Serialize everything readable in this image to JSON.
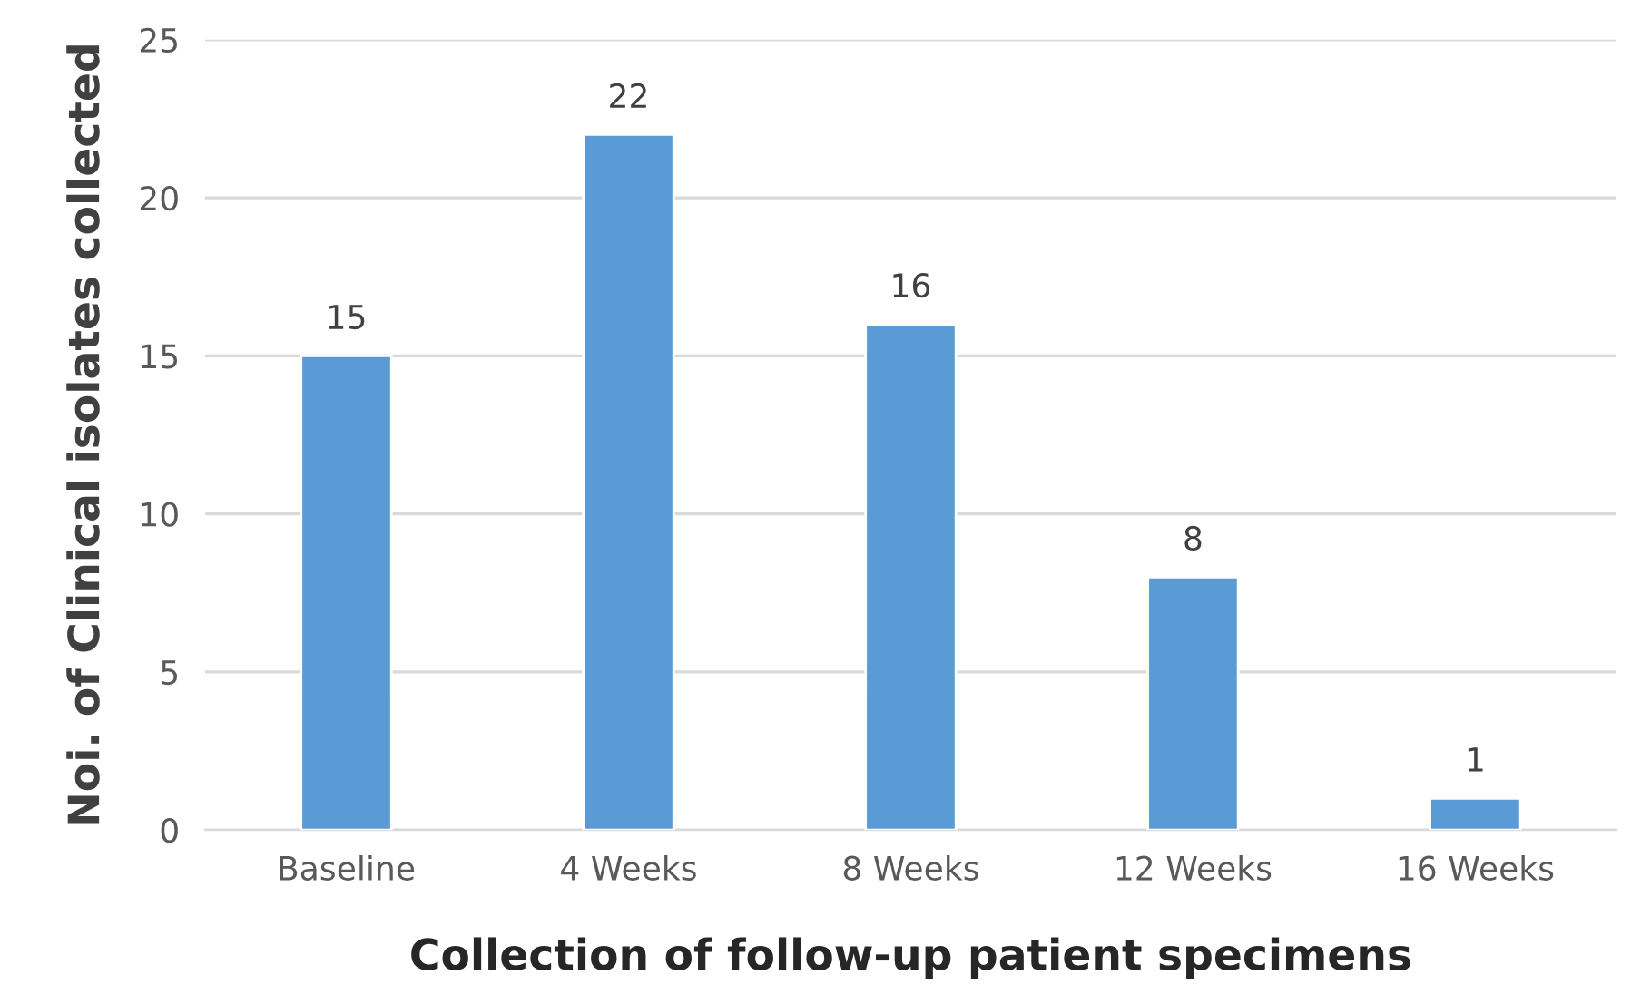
{
  "chart_data": {
    "type": "bar",
    "xlabel": "Collection of follow-up patient specimens",
    "ylabel": "Noi. of Clinical isolates collected",
    "categories": [
      "Baseline",
      "4 Weeks",
      "8 Weeks",
      "12 Weeks",
      "16 Weeks"
    ],
    "values": [
      15,
      22,
      16,
      8,
      1
    ],
    "color": "#5b9bd5",
    "ylim": [
      0,
      25
    ],
    "yticks": [
      0,
      5,
      10,
      15,
      20,
      25
    ],
    "grid": "y",
    "data_labels": true,
    "legend": false
  }
}
